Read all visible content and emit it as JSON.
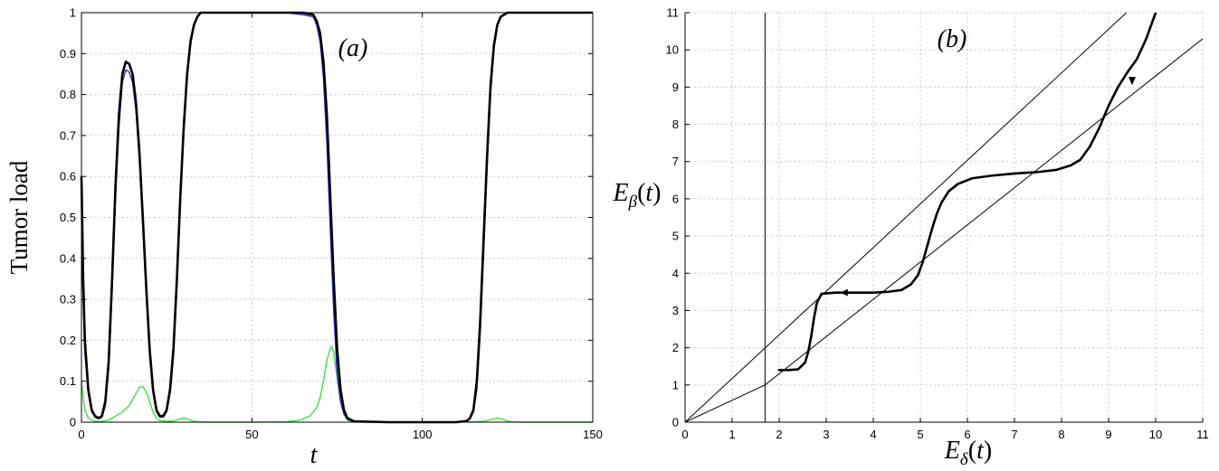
{
  "chart_data": [
    {
      "type": "line",
      "panel_label": "(a)",
      "xlabel": "t",
      "ylabel": "Tumor load",
      "xlim": [
        0,
        150
      ],
      "ylim": [
        0,
        1
      ],
      "xticks": [
        0,
        50,
        100,
        150
      ],
      "yticks": [
        0,
        0.1,
        0.2,
        0.3,
        0.4,
        0.5,
        0.6,
        0.7,
        0.8,
        0.9,
        1
      ],
      "grid": true,
      "series": [
        {
          "color": "#000000",
          "width": 2.6,
          "points": [
            [
              0,
              0.6
            ],
            [
              0.5,
              0.35
            ],
            [
              1,
              0.2
            ],
            [
              2,
              0.08
            ],
            [
              3,
              0.03
            ],
            [
              4,
              0.015
            ],
            [
              5,
              0.01
            ],
            [
              6,
              0.015
            ],
            [
              7,
              0.05
            ],
            [
              8,
              0.15
            ],
            [
              9,
              0.35
            ],
            [
              10,
              0.58
            ],
            [
              11,
              0.75
            ],
            [
              12,
              0.85
            ],
            [
              13,
              0.88
            ],
            [
              14,
              0.875
            ],
            [
              15,
              0.85
            ],
            [
              16,
              0.78
            ],
            [
              17,
              0.66
            ],
            [
              18,
              0.5
            ],
            [
              19,
              0.33
            ],
            [
              20,
              0.18
            ],
            [
              21,
              0.08
            ],
            [
              22,
              0.03
            ],
            [
              23,
              0.015
            ],
            [
              24,
              0.015
            ],
            [
              25,
              0.03
            ],
            [
              26,
              0.08
            ],
            [
              27,
              0.18
            ],
            [
              28,
              0.35
            ],
            [
              29,
              0.55
            ],
            [
              30,
              0.72
            ],
            [
              31,
              0.85
            ],
            [
              32,
              0.93
            ],
            [
              33,
              0.97
            ],
            [
              34,
              0.99
            ],
            [
              35,
              1
            ],
            [
              40,
              1
            ],
            [
              50,
              1
            ],
            [
              60,
              1
            ],
            [
              65,
              1
            ],
            [
              68,
              0.995
            ],
            [
              69,
              0.98
            ],
            [
              70,
              0.95
            ],
            [
              71,
              0.88
            ],
            [
              72,
              0.75
            ],
            [
              73,
              0.55
            ],
            [
              74,
              0.35
            ],
            [
              75,
              0.18
            ],
            [
              76,
              0.08
            ],
            [
              77,
              0.03
            ],
            [
              78,
              0.01
            ],
            [
              80,
              0.002
            ],
            [
              90,
              0
            ],
            [
              100,
              0
            ],
            [
              110,
              0
            ],
            [
              113,
              0.003
            ],
            [
              114,
              0.01
            ],
            [
              115,
              0.03
            ],
            [
              116,
              0.1
            ],
            [
              117,
              0.25
            ],
            [
              118,
              0.45
            ],
            [
              119,
              0.65
            ],
            [
              120,
              0.82
            ],
            [
              121,
              0.92
            ],
            [
              122,
              0.97
            ],
            [
              123,
              0.99
            ],
            [
              125,
              1
            ],
            [
              130,
              1
            ],
            [
              150,
              1
            ]
          ]
        },
        {
          "color": "#2a2ad0",
          "width": 1.4,
          "points": [
            [
              0,
              0.5
            ],
            [
              0.5,
              0.3
            ],
            [
              1,
              0.17
            ],
            [
              2,
              0.07
            ],
            [
              3,
              0.025
            ],
            [
              4,
              0.012
            ],
            [
              5,
              0.008
            ],
            [
              6,
              0.012
            ],
            [
              7,
              0.04
            ],
            [
              8,
              0.13
            ],
            [
              9,
              0.32
            ],
            [
              10,
              0.55
            ],
            [
              11,
              0.72
            ],
            [
              12,
              0.83
            ],
            [
              13,
              0.86
            ],
            [
              14,
              0.855
            ],
            [
              15,
              0.83
            ],
            [
              16,
              0.76
            ],
            [
              17,
              0.64
            ],
            [
              18,
              0.48
            ],
            [
              19,
              0.31
            ],
            [
              20,
              0.16
            ],
            [
              21,
              0.07
            ],
            [
              22,
              0.025
            ],
            [
              23,
              0.012
            ],
            [
              24,
              0.012
            ],
            [
              25,
              0.025
            ],
            [
              26,
              0.07
            ],
            [
              27,
              0.16
            ],
            [
              28,
              0.33
            ],
            [
              29,
              0.53
            ],
            [
              30,
              0.7
            ],
            [
              31,
              0.84
            ],
            [
              32,
              0.92
            ],
            [
              33,
              0.97
            ],
            [
              34,
              0.99
            ],
            [
              35,
              1
            ],
            [
              40,
              1
            ],
            [
              50,
              1
            ],
            [
              60,
              1
            ],
            [
              65,
              0.995
            ],
            [
              68,
              0.99
            ],
            [
              69,
              0.97
            ],
            [
              70,
              0.93
            ],
            [
              71,
              0.84
            ],
            [
              72,
              0.68
            ],
            [
              73,
              0.47
            ],
            [
              74,
              0.27
            ],
            [
              75,
              0.12
            ],
            [
              76,
              0.05
            ],
            [
              77,
              0.02
            ],
            [
              78,
              0.007
            ],
            [
              80,
              0.001
            ],
            [
              90,
              0
            ],
            [
              100,
              0
            ],
            [
              110,
              0
            ],
            [
              113,
              0.002
            ],
            [
              114,
              0.008
            ],
            [
              115,
              0.025
            ],
            [
              116,
              0.08
            ],
            [
              117,
              0.22
            ],
            [
              118,
              0.42
            ],
            [
              119,
              0.62
            ],
            [
              120,
              0.8
            ],
            [
              121,
              0.91
            ],
            [
              122,
              0.97
            ],
            [
              123,
              0.99
            ],
            [
              125,
              1
            ],
            [
              130,
              1
            ],
            [
              150,
              1
            ]
          ]
        },
        {
          "color": "#3fe03f",
          "width": 1.4,
          "points": [
            [
              0,
              0.1
            ],
            [
              0.5,
              0.06
            ],
            [
              1,
              0.03
            ],
            [
              2,
              0.01
            ],
            [
              4,
              0.002
            ],
            [
              6,
              0.002
            ],
            [
              8,
              0.005
            ],
            [
              10,
              0.015
            ],
            [
              12,
              0.025
            ],
            [
              14,
              0.04
            ],
            [
              16,
              0.07
            ],
            [
              17,
              0.085
            ],
            [
              18,
              0.087
            ],
            [
              19,
              0.075
            ],
            [
              20,
              0.05
            ],
            [
              21,
              0.025
            ],
            [
              22,
              0.01
            ],
            [
              23,
              0.004
            ],
            [
              25,
              0.002
            ],
            [
              27,
              0.003
            ],
            [
              29,
              0.008
            ],
            [
              30,
              0.01
            ],
            [
              31,
              0.008
            ],
            [
              33,
              0.002
            ],
            [
              36,
              0
            ],
            [
              50,
              0
            ],
            [
              60,
              0.001
            ],
            [
              64,
              0.005
            ],
            [
              67,
              0.015
            ],
            [
              69,
              0.035
            ],
            [
              70,
              0.06
            ],
            [
              71,
              0.1
            ],
            [
              72,
              0.15
            ],
            [
              73,
              0.18
            ],
            [
              73.5,
              0.185
            ],
            [
              74,
              0.17
            ],
            [
              75,
              0.11
            ],
            [
              76,
              0.05
            ],
            [
              77,
              0.02
            ],
            [
              78,
              0.005
            ],
            [
              80,
              0
            ],
            [
              110,
              0
            ],
            [
              118,
              0.002
            ],
            [
              121,
              0.008
            ],
            [
              122,
              0.01
            ],
            [
              123,
              0.009
            ],
            [
              124,
              0.005
            ],
            [
              126,
              0.001
            ],
            [
              130,
              0
            ],
            [
              150,
              0
            ]
          ]
        }
      ]
    },
    {
      "type": "line",
      "panel_label": "(b)",
      "xlabel": "E_δ(t)",
      "ylabel": "E_β(t)",
      "xlim": [
        0,
        11
      ],
      "ylim": [
        0,
        11
      ],
      "xticks": [
        0,
        1,
        2,
        3,
        4,
        5,
        6,
        7,
        8,
        9,
        10,
        11
      ],
      "yticks": [
        0,
        1,
        2,
        3,
        4,
        5,
        6,
        7,
        8,
        9,
        10,
        11
      ],
      "grid": true,
      "reference_lines": [
        {
          "points": [
            [
              0,
              0
            ],
            [
              11,
              12.9
            ]
          ],
          "color": "#000000",
          "width": 1
        },
        {
          "points": [
            [
              0,
              0
            ],
            [
              1.7,
              1
            ],
            [
              11,
              10.3
            ]
          ],
          "color": "#000000",
          "width": 1
        },
        {
          "points": [
            [
              1.7,
              0
            ],
            [
              1.7,
              11
            ]
          ],
          "color": "#000000",
          "width": 1
        }
      ],
      "series": [
        {
          "color": "#000000",
          "width": 2.6,
          "points": [
            [
              2,
              1.4
            ],
            [
              2.2,
              1.4
            ],
            [
              2.4,
              1.42
            ],
            [
              2.55,
              1.6
            ],
            [
              2.62,
              1.9
            ],
            [
              2.68,
              2.3
            ],
            [
              2.74,
              2.8
            ],
            [
              2.8,
              3.2
            ],
            [
              2.9,
              3.45
            ],
            [
              3.2,
              3.48
            ],
            [
              3.6,
              3.48
            ],
            [
              4.0,
              3.48
            ],
            [
              4.3,
              3.5
            ],
            [
              4.6,
              3.55
            ],
            [
              4.8,
              3.7
            ],
            [
              4.95,
              3.95
            ],
            [
              5.05,
              4.3
            ],
            [
              5.15,
              4.75
            ],
            [
              5.25,
              5.2
            ],
            [
              5.35,
              5.6
            ],
            [
              5.45,
              5.9
            ],
            [
              5.6,
              6.2
            ],
            [
              5.8,
              6.4
            ],
            [
              6.1,
              6.55
            ],
            [
              6.5,
              6.62
            ],
            [
              7.0,
              6.68
            ],
            [
              7.5,
              6.72
            ],
            [
              7.9,
              6.78
            ],
            [
              8.2,
              6.9
            ],
            [
              8.4,
              7.05
            ],
            [
              8.6,
              7.4
            ],
            [
              8.8,
              7.9
            ],
            [
              9.0,
              8.5
            ],
            [
              9.2,
              9.0
            ],
            [
              9.4,
              9.4
            ],
            [
              9.6,
              9.75
            ],
            [
              9.8,
              10.3
            ],
            [
              10.0,
              11.0
            ]
          ]
        }
      ],
      "arrows": [
        {
          "at": [
            3.4,
            3.48
          ],
          "direction": "left"
        },
        {
          "at": [
            9.5,
            9.2
          ],
          "direction": "down"
        }
      ]
    }
  ]
}
